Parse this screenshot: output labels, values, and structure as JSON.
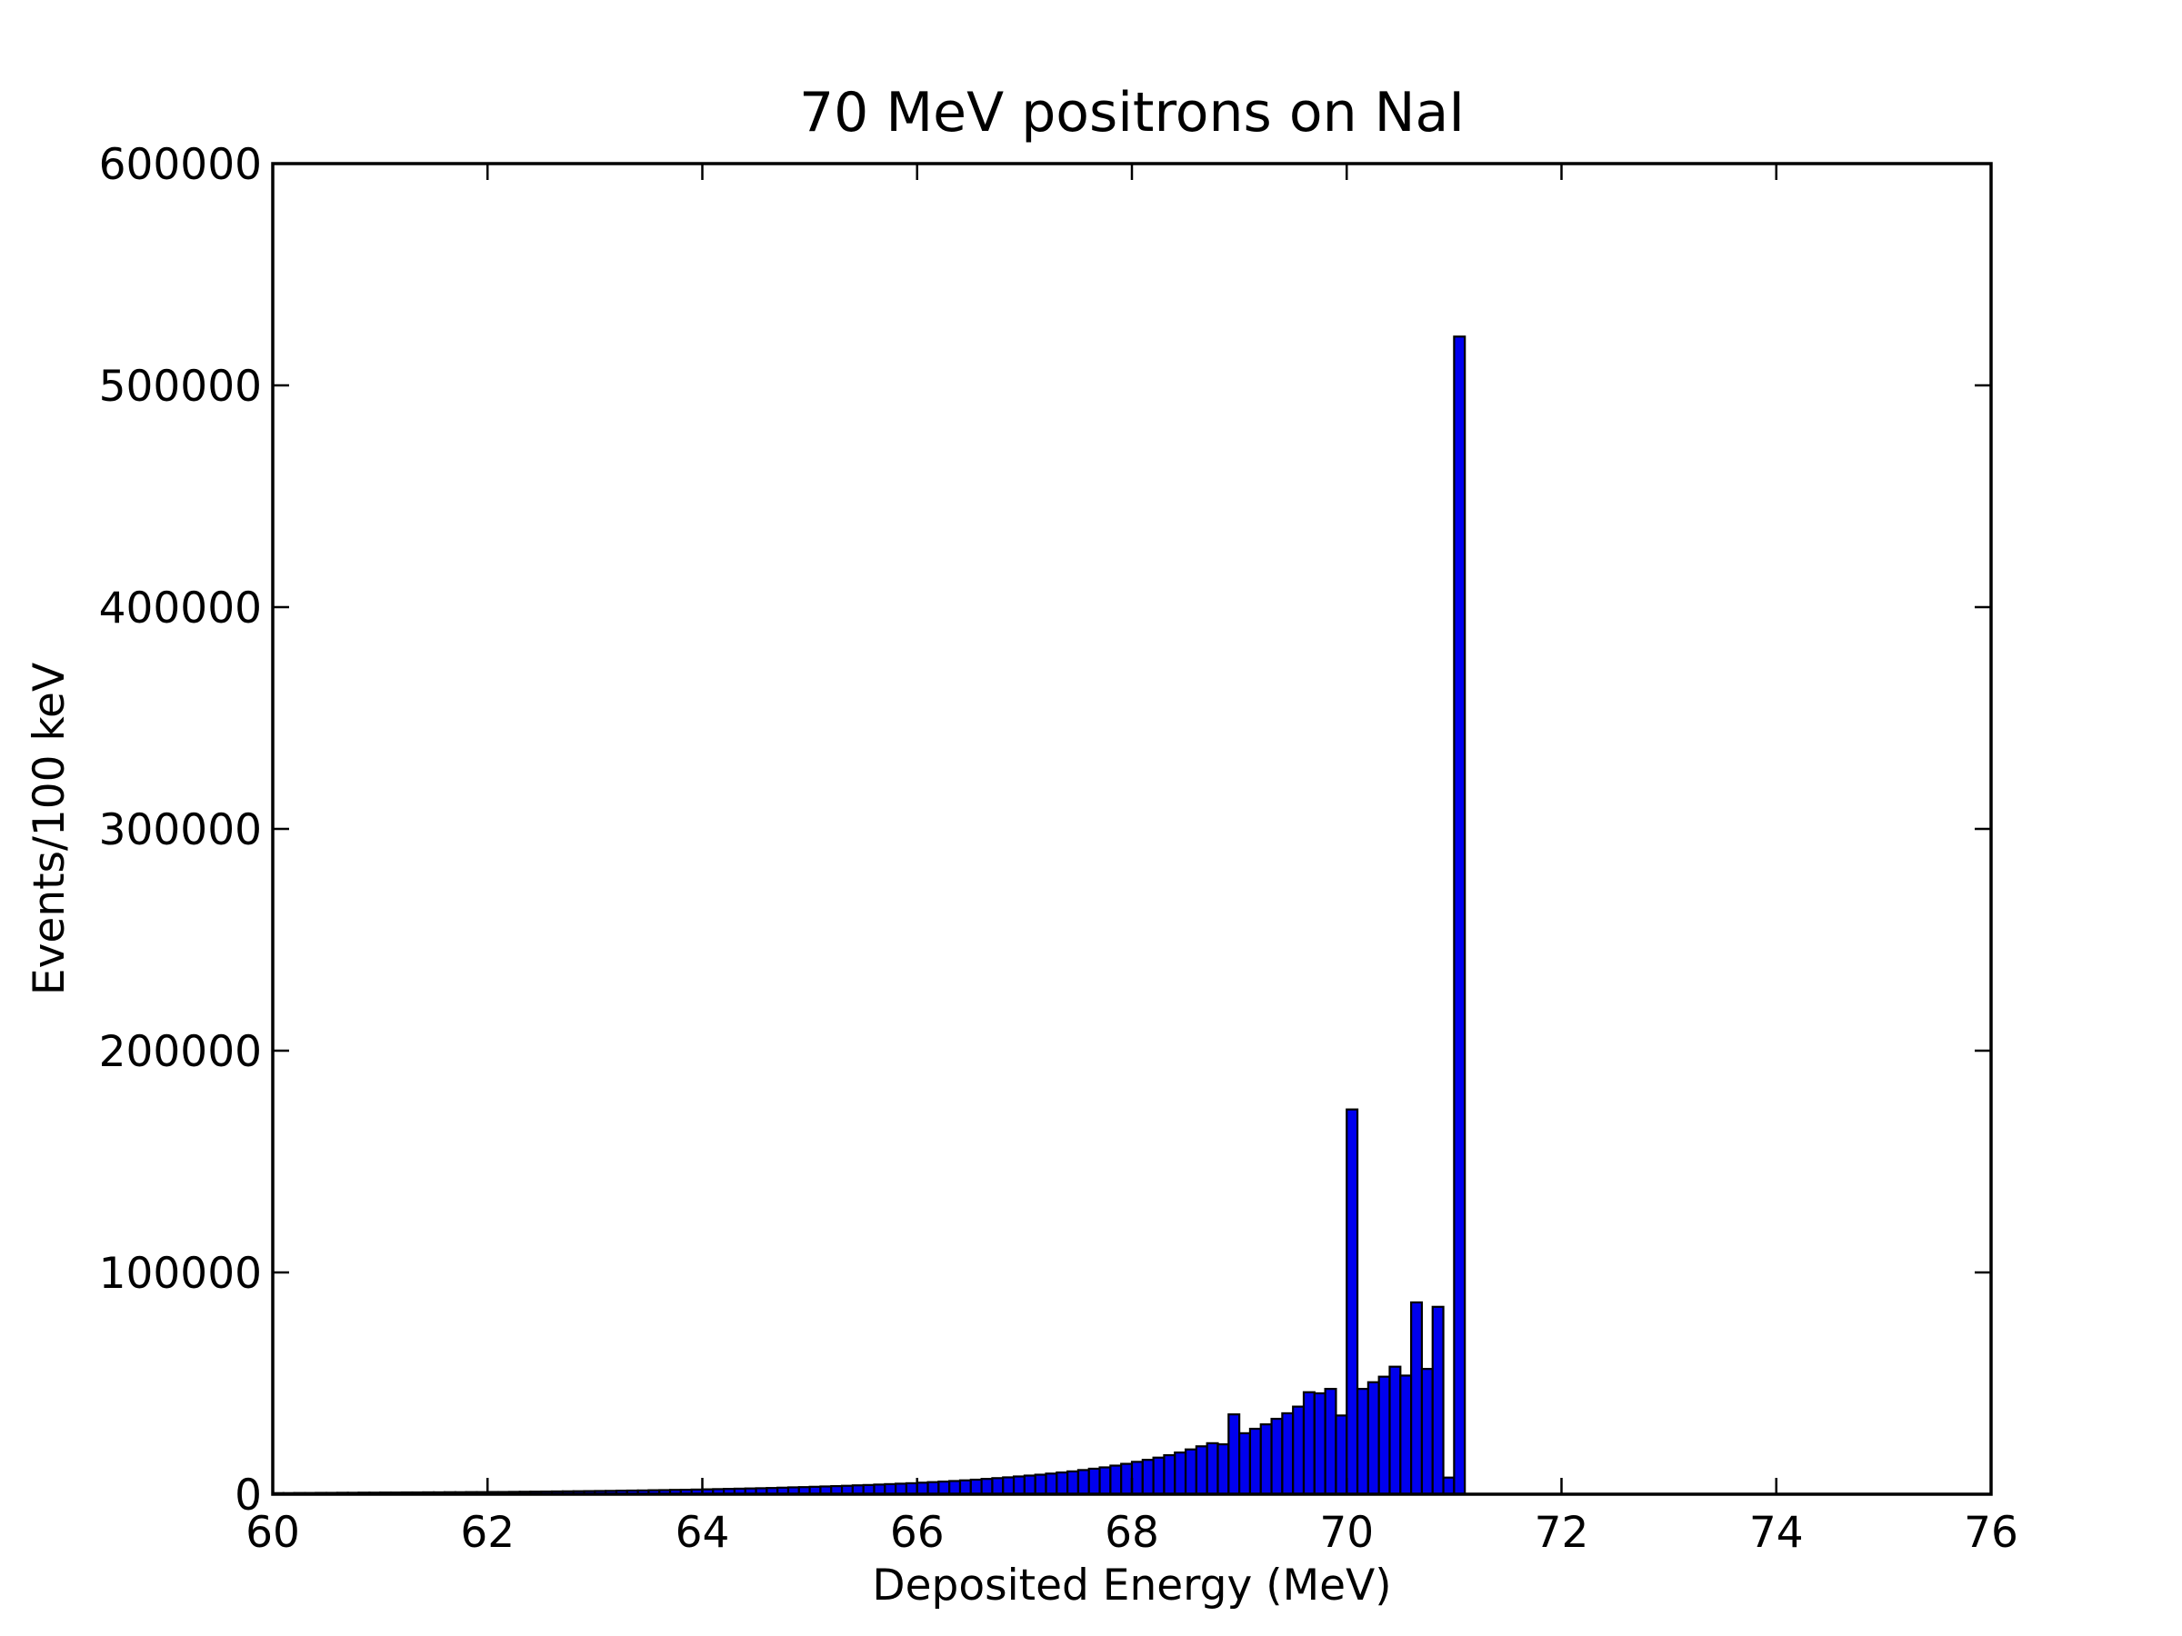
{
  "chart_data": {
    "type": "bar",
    "title": "70 MeV positrons on NaI",
    "xlabel": "Deposited Energy (MeV)",
    "ylabel": "Events/100 keV",
    "xlim": [
      60,
      76
    ],
    "ylim": [
      0,
      600000
    ],
    "xticks": [
      "60",
      "62",
      "64",
      "66",
      "68",
      "70",
      "72",
      "74",
      "76"
    ],
    "yticks": [
      "0",
      "100000",
      "200000",
      "300000",
      "400000",
      "500000",
      "600000"
    ],
    "bin_width": 0.1,
    "bar_color": "#0000ee",
    "edge_color": "#000000",
    "grid": false,
    "bins": [
      {
        "x": 60.0,
        "y": 500
      },
      {
        "x": 60.1,
        "y": 500
      },
      {
        "x": 60.2,
        "y": 550
      },
      {
        "x": 60.3,
        "y": 550
      },
      {
        "x": 60.4,
        "y": 600
      },
      {
        "x": 60.5,
        "y": 600
      },
      {
        "x": 60.6,
        "y": 650
      },
      {
        "x": 60.7,
        "y": 650
      },
      {
        "x": 60.8,
        "y": 700
      },
      {
        "x": 60.9,
        "y": 700
      },
      {
        "x": 61.0,
        "y": 750
      },
      {
        "x": 61.1,
        "y": 750
      },
      {
        "x": 61.2,
        "y": 800
      },
      {
        "x": 61.3,
        "y": 800
      },
      {
        "x": 61.4,
        "y": 850
      },
      {
        "x": 61.5,
        "y": 850
      },
      {
        "x": 61.6,
        "y": 900
      },
      {
        "x": 61.7,
        "y": 900
      },
      {
        "x": 61.8,
        "y": 950
      },
      {
        "x": 61.9,
        "y": 950
      },
      {
        "x": 62.0,
        "y": 1000
      },
      {
        "x": 62.1,
        "y": 1000
      },
      {
        "x": 62.2,
        "y": 1050
      },
      {
        "x": 62.3,
        "y": 1100
      },
      {
        "x": 62.4,
        "y": 1150
      },
      {
        "x": 62.5,
        "y": 1200
      },
      {
        "x": 62.6,
        "y": 1250
      },
      {
        "x": 62.7,
        "y": 1300
      },
      {
        "x": 62.8,
        "y": 1350
      },
      {
        "x": 62.9,
        "y": 1400
      },
      {
        "x": 63.0,
        "y": 1450
      },
      {
        "x": 63.1,
        "y": 1500
      },
      {
        "x": 63.2,
        "y": 1600
      },
      {
        "x": 63.3,
        "y": 1650
      },
      {
        "x": 63.4,
        "y": 1700
      },
      {
        "x": 63.5,
        "y": 1800
      },
      {
        "x": 63.6,
        "y": 1850
      },
      {
        "x": 63.7,
        "y": 1950
      },
      {
        "x": 63.8,
        "y": 2000
      },
      {
        "x": 63.9,
        "y": 2100
      },
      {
        "x": 64.0,
        "y": 2200
      },
      {
        "x": 64.1,
        "y": 2300
      },
      {
        "x": 64.2,
        "y": 2400
      },
      {
        "x": 64.3,
        "y": 2500
      },
      {
        "x": 64.4,
        "y": 2600
      },
      {
        "x": 64.5,
        "y": 2700
      },
      {
        "x": 64.6,
        "y": 2800
      },
      {
        "x": 64.7,
        "y": 2950
      },
      {
        "x": 64.8,
        "y": 3100
      },
      {
        "x": 64.9,
        "y": 3200
      },
      {
        "x": 65.0,
        "y": 3350
      },
      {
        "x": 65.1,
        "y": 3500
      },
      {
        "x": 65.2,
        "y": 3650
      },
      {
        "x": 65.3,
        "y": 3800
      },
      {
        "x": 65.4,
        "y": 4000
      },
      {
        "x": 65.5,
        "y": 4150
      },
      {
        "x": 65.6,
        "y": 4350
      },
      {
        "x": 65.7,
        "y": 4550
      },
      {
        "x": 65.8,
        "y": 4750
      },
      {
        "x": 65.9,
        "y": 4950
      },
      {
        "x": 66.0,
        "y": 5200
      },
      {
        "x": 66.1,
        "y": 5450
      },
      {
        "x": 66.2,
        "y": 5700
      },
      {
        "x": 66.3,
        "y": 5950
      },
      {
        "x": 66.4,
        "y": 6250
      },
      {
        "x": 66.5,
        "y": 6550
      },
      {
        "x": 66.6,
        "y": 6900
      },
      {
        "x": 66.7,
        "y": 7250
      },
      {
        "x": 66.8,
        "y": 7600
      },
      {
        "x": 66.9,
        "y": 8000
      },
      {
        "x": 67.0,
        "y": 8400
      },
      {
        "x": 67.1,
        "y": 8800
      },
      {
        "x": 67.2,
        "y": 9300
      },
      {
        "x": 67.3,
        "y": 9800
      },
      {
        "x": 67.4,
        "y": 10300
      },
      {
        "x": 67.5,
        "y": 10900
      },
      {
        "x": 67.6,
        "y": 11500
      },
      {
        "x": 67.7,
        "y": 12100
      },
      {
        "x": 67.8,
        "y": 12900
      },
      {
        "x": 67.9,
        "y": 13700
      },
      {
        "x": 68.0,
        "y": 14600
      },
      {
        "x": 68.1,
        "y": 15500
      },
      {
        "x": 68.2,
        "y": 16500
      },
      {
        "x": 68.3,
        "y": 17600
      },
      {
        "x": 68.4,
        "y": 18800
      },
      {
        "x": 68.5,
        "y": 20200
      },
      {
        "x": 68.6,
        "y": 21600
      },
      {
        "x": 68.7,
        "y": 23000
      },
      {
        "x": 68.8,
        "y": 22500
      },
      {
        "x": 68.9,
        "y": 36000
      },
      {
        "x": 69.0,
        "y": 27500
      },
      {
        "x": 69.1,
        "y": 29500
      },
      {
        "x": 69.2,
        "y": 31500
      },
      {
        "x": 69.3,
        "y": 34000
      },
      {
        "x": 69.4,
        "y": 36500
      },
      {
        "x": 69.5,
        "y": 39500
      },
      {
        "x": 69.6,
        "y": 46000
      },
      {
        "x": 69.7,
        "y": 45500
      },
      {
        "x": 69.8,
        "y": 47500
      },
      {
        "x": 69.9,
        "y": 35500
      },
      {
        "x": 70.0,
        "y": 173500
      },
      {
        "x": 70.1,
        "y": 47500
      },
      {
        "x": 70.2,
        "y": 50500
      },
      {
        "x": 70.3,
        "y": 53000
      },
      {
        "x": 70.4,
        "y": 57500
      },
      {
        "x": 70.5,
        "y": 53500
      },
      {
        "x": 70.6,
        "y": 86500
      },
      {
        "x": 70.7,
        "y": 56500
      },
      {
        "x": 70.8,
        "y": 84500
      },
      {
        "x": 70.9,
        "y": 7500
      },
      {
        "x": 71.0,
        "y": 522000
      }
    ]
  }
}
